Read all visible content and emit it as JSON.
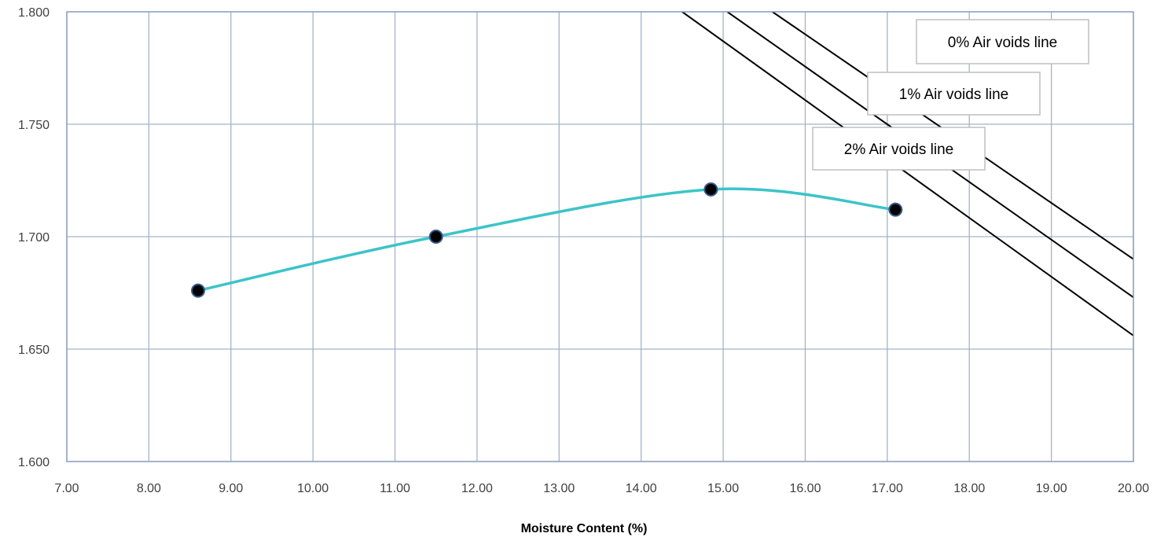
{
  "chart_data": {
    "type": "line",
    "title": "",
    "xlabel": "Moisture Content (%)",
    "ylabel": "",
    "xlim": [
      7,
      20
    ],
    "ylim": [
      1.6,
      1.8
    ],
    "x_ticks": [
      "7.00",
      "8.00",
      "9.00",
      "10.00",
      "11.00",
      "12.00",
      "13.00",
      "14.00",
      "15.00",
      "16.00",
      "17.00",
      "18.00",
      "19.00",
      "20.00"
    ],
    "y_ticks": [
      "1.600",
      "1.650",
      "1.700",
      "1.750",
      "1.800"
    ],
    "grid": true,
    "series": [
      {
        "points": [
          {
            "x": 8.6,
            "y": 1.676
          },
          {
            "x": 11.5,
            "y": 1.7
          },
          {
            "x": 14.85,
            "y": 1.721
          },
          {
            "x": 17.1,
            "y": 1.712
          }
        ],
        "color": "#3cc4c8",
        "smooth": true,
        "marker": "circle",
        "marker_color": "#000000"
      }
    ],
    "air_void_lines": [
      {
        "label": "0% Air voids line",
        "start": {
          "x": 15.6,
          "y": 1.8
        },
        "end": {
          "x": 20.0,
          "y": 1.69
        }
      },
      {
        "label": "1% Air voids line",
        "start": {
          "x": 15.05,
          "y": 1.8
        },
        "end": {
          "x": 20.0,
          "y": 1.673
        }
      },
      {
        "label": "2% Air voids line",
        "start": {
          "x": 14.5,
          "y": 1.8
        },
        "end": {
          "x": 20.0,
          "y": 1.656
        }
      }
    ]
  }
}
